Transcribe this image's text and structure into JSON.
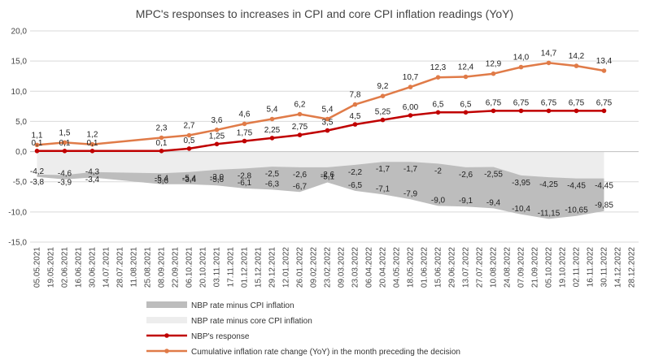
{
  "chart_data": {
    "type": "line",
    "title": "MPC's responses to increases in CPI and core CPI inflation readings (YoY)",
    "xlabel": "",
    "ylabel": "",
    "ylim": [
      -15,
      20
    ],
    "yticks": [
      "20,0",
      "15,0",
      "10,0",
      "5,0",
      "0,0",
      "-5,0",
      "-10,0",
      "-15,0"
    ],
    "grid": true,
    "legend_position": "bottom",
    "categories": [
      "05.05.2021",
      "19.05.2021",
      "02.06.2021",
      "16.06.2021",
      "30.06.2021",
      "14.07.2021",
      "28.07.2021",
      "11.08.2021",
      "25.08.2021",
      "08.09.2021",
      "22.09.2021",
      "06.10.2021",
      "20.10.2021",
      "03.11.2021",
      "17.11.2021",
      "01.12.2021",
      "15.12.2021",
      "29.12.2021",
      "12.01.2022",
      "26.01.2022",
      "09.02.2022",
      "23.02.2022",
      "09.03.2022",
      "23.03.2022",
      "06.04.2022",
      "20.04.2022",
      "04.05.2022",
      "18.05.2022",
      "01.06.2022",
      "15.06.2022",
      "29.06.2022",
      "13.07.2022",
      "27.07.2022",
      "10.08.2022",
      "24.08.2022",
      "07.09.2022",
      "21.09.2022",
      "05.10.2022",
      "19.10.2022",
      "02.11.2022",
      "16.11.2022",
      "30.11.2022",
      "14.12.2022",
      "28.12.2022"
    ],
    "series": [
      {
        "name": "NBP rate minus CPI inflation",
        "kind": "area",
        "color": "#bdbdbd",
        "points": [
          [
            0,
            -4.2
          ],
          [
            2,
            -4.6
          ],
          [
            4,
            -4.3
          ],
          [
            9,
            -5.4
          ],
          [
            11,
            -5.4
          ],
          [
            13,
            -5.6
          ],
          [
            15,
            -6.1
          ],
          [
            17,
            -6.3
          ],
          [
            19,
            -6.7
          ],
          [
            21,
            -5.1
          ],
          [
            23,
            -6.5
          ],
          [
            25,
            -7.1
          ],
          [
            27,
            -7.9
          ],
          [
            29,
            -9.0
          ],
          [
            31,
            -9.1
          ],
          [
            33,
            -9.4
          ],
          [
            35,
            -10.4
          ],
          [
            37,
            -11.15
          ],
          [
            39,
            -10.65
          ],
          [
            41,
            -9.85
          ]
        ],
        "labels": [
          "-4,2",
          "-4,6",
          "-4,3",
          "-5,4",
          "-5,4",
          "-5,6",
          "-6,1",
          "-6,3",
          "-6,7",
          "-5,1",
          "-6,5",
          "-7,1",
          "-7,9",
          "-9,0",
          "-9,1",
          "-9,4",
          "-10,4",
          "-11,15",
          "-10,65",
          "-9,85"
        ]
      },
      {
        "name": "NBP rate minus core CPI inflation",
        "kind": "area",
        "color": "#ededed",
        "points": [
          [
            0,
            -3.8
          ],
          [
            2,
            -3.9
          ],
          [
            4,
            -3.4
          ],
          [
            9,
            -3.6
          ],
          [
            11,
            -3.4
          ],
          [
            13,
            -3.0
          ],
          [
            15,
            -2.8
          ],
          [
            17,
            -2.5
          ],
          [
            19,
            -2.6
          ],
          [
            21,
            -2.6
          ],
          [
            23,
            -2.2
          ],
          [
            25,
            -1.7
          ],
          [
            27,
            -1.7
          ],
          [
            29,
            -2.0
          ],
          [
            31,
            -2.6
          ],
          [
            33,
            -2.55
          ],
          [
            35,
            -3.95
          ],
          [
            37,
            -4.25
          ],
          [
            39,
            -4.45
          ],
          [
            41,
            -4.45
          ]
        ],
        "labels": [
          "-3,8",
          "-3,9",
          "-3,4",
          "-3,6",
          "-3,4",
          "-3,0",
          "-2,8",
          "-2,5",
          "-2,6",
          "-2,6",
          "-2,2",
          "-1,7",
          "-1,7",
          "-2",
          "-2,6",
          "-2,55",
          "-3,95",
          "-4,25",
          "-4,45",
          "-4,45"
        ]
      },
      {
        "name": "NBP's response",
        "kind": "line",
        "color": "#c00000",
        "points": [
          [
            0,
            0.1
          ],
          [
            2,
            0.1
          ],
          [
            4,
            0.1
          ],
          [
            9,
            0.1
          ],
          [
            11,
            0.5
          ],
          [
            13,
            1.25
          ],
          [
            15,
            1.75
          ],
          [
            17,
            2.25
          ],
          [
            19,
            2.75
          ],
          [
            21,
            3.5
          ],
          [
            23,
            4.5
          ],
          [
            25,
            5.25
          ],
          [
            27,
            6.0
          ],
          [
            29,
            6.5
          ],
          [
            31,
            6.5
          ],
          [
            33,
            6.75
          ],
          [
            35,
            6.75
          ],
          [
            37,
            6.75
          ],
          [
            39,
            6.75
          ],
          [
            41,
            6.75
          ]
        ],
        "labels": [
          "0,1",
          "0,1",
          "0,1",
          "0,1",
          "0,5",
          "1,25",
          "1,75",
          "2,25",
          "2,75",
          "3,5",
          "4,5",
          "5,25",
          "6,00",
          "6,5",
          "6,5",
          "6,75",
          "6,75",
          "6,75",
          "6,75",
          "6,75"
        ]
      },
      {
        "name": "Cumulative inflation rate change (YoY) in the month preceding the decision",
        "kind": "line",
        "color": "#e07b48",
        "points": [
          [
            0,
            1.1
          ],
          [
            2,
            1.5
          ],
          [
            4,
            1.2
          ],
          [
            9,
            2.3
          ],
          [
            11,
            2.7
          ],
          [
            13,
            3.6
          ],
          [
            15,
            4.6
          ],
          [
            17,
            5.4
          ],
          [
            19,
            6.2
          ],
          [
            21,
            5.4
          ],
          [
            23,
            7.8
          ],
          [
            25,
            9.2
          ],
          [
            27,
            10.7
          ],
          [
            29,
            12.3
          ],
          [
            31,
            12.4
          ],
          [
            33,
            12.9
          ],
          [
            35,
            14.0
          ],
          [
            37,
            14.7
          ],
          [
            39,
            14.2
          ],
          [
            41,
            13.4
          ]
        ],
        "labels": [
          "1,1",
          "1,5",
          "1,2",
          "2,3",
          "2,7",
          "3,6",
          "4,6",
          "5,4",
          "6,2",
          "5,4",
          "7,8",
          "9,2",
          "10,7",
          "12,3",
          "12,4",
          "12,9",
          "14,0",
          "14,7",
          "14,2",
          "13,4"
        ]
      }
    ]
  }
}
